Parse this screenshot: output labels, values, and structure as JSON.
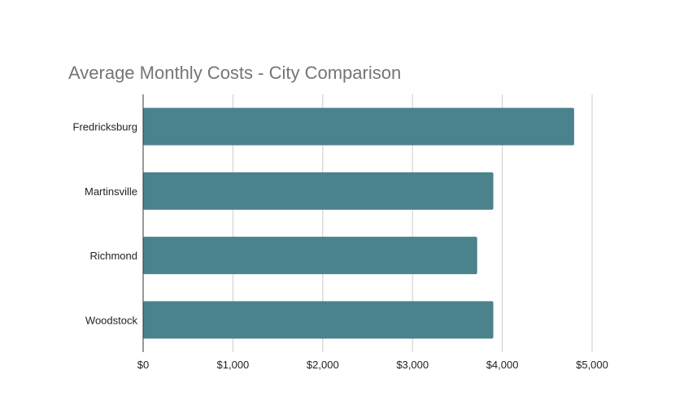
{
  "chart_data": {
    "type": "bar",
    "orientation": "horizontal",
    "title": "Average Monthly Costs - City Comparison",
    "categories": [
      "Fredricksburg",
      "Martinsville",
      "Richmond",
      "Woodstock"
    ],
    "values": [
      4800,
      3900,
      3720,
      3900
    ],
    "xlim": [
      0,
      5000
    ],
    "x_ticks": [
      0,
      1000,
      2000,
      3000,
      4000,
      5000
    ],
    "x_tick_labels": [
      "$0",
      "$1,000",
      "$2,000",
      "$3,000",
      "$4,000",
      "$5,000"
    ],
    "xlabel": "",
    "ylabel": "",
    "grid": "vertical",
    "legend": "none",
    "bar_color": "#4a828d"
  }
}
